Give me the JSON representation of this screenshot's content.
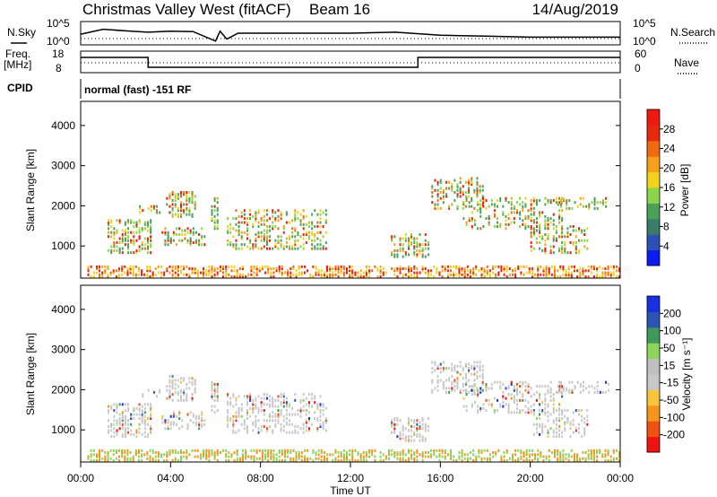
{
  "header": {
    "title": "Christmas Valley West (fitACF)",
    "beam": "Beam 16",
    "date": "14/Aug/2019"
  },
  "left_labels": {
    "nsky": "N.Sky",
    "freq_top": "Freq.",
    "freq_unit": "[MHz]",
    "cpid": "CPID"
  },
  "right_labels": {
    "nsearch": "N.Search",
    "nave": "Nave"
  },
  "cpid_text": "normal (fast) -151 RF",
  "colors": {
    "power_scale": [
      "#0a1cf0",
      "#2e4fb5",
      "#3a7c6a",
      "#4aa25a",
      "#8cd44a",
      "#f3d21c",
      "#f5a21a",
      "#f06a10",
      "#e8280c",
      "#ee1a10"
    ],
    "velocity_scale": [
      "#ee1510",
      "#f05010",
      "#f5951a",
      "#f8c43c",
      "#c8c8c8",
      "#bfbfbf",
      "#8ed45a",
      "#3e9a5a",
      "#2a55b5",
      "#1a2fe0"
    ]
  },
  "chart_data": [
    {
      "type": "line",
      "name": "noise-search",
      "left_ticks": [
        "10^5",
        "10^0"
      ],
      "right_ticks": [
        "10^5",
        "10^0"
      ],
      "left_label": "N.Sky",
      "right_label": "N.Search",
      "xlim": [
        0,
        24
      ],
      "x": [
        0,
        1,
        2,
        3,
        4,
        5,
        6,
        6.2,
        6.5,
        7,
        8,
        10,
        12,
        14,
        16,
        18,
        20,
        22,
        24
      ],
      "values": [
        0.45,
        0.7,
        0.62,
        0.55,
        0.6,
        0.58,
        0.1,
        0.6,
        0.2,
        0.5,
        0.5,
        0.5,
        0.5,
        0.55,
        0.4,
        0.35,
        0.3,
        0.3,
        0.3
      ]
    },
    {
      "type": "line",
      "name": "frequency-nave",
      "left_ticks": [
        "18",
        "8"
      ],
      "right_ticks": [
        "60",
        "0"
      ],
      "left_label": "Freq. [MHz]",
      "right_label": "Nave",
      "xlim": [
        0,
        24
      ],
      "freq_steps": [
        [
          0,
          3,
          "high"
        ],
        [
          3,
          15,
          "low"
        ],
        [
          15,
          24,
          "high"
        ]
      ]
    },
    {
      "type": "heatmap",
      "name": "power",
      "ylabel": "Slant Range [km]",
      "yticks": [
        "4000",
        "3000",
        "2000",
        "1000"
      ],
      "ytick_values": [
        4000,
        3000,
        2000,
        1000
      ],
      "ylim": [
        200,
        4600
      ],
      "xlim": [
        0,
        24
      ],
      "colorbar": {
        "label": "Power [dB]",
        "ticks": [
          "28",
          "24",
          "20",
          "16",
          "12",
          "8",
          "4"
        ]
      }
    },
    {
      "type": "heatmap",
      "name": "velocity",
      "ylabel": "Slant Range [km]",
      "xlabel": "Time UT",
      "yticks": [
        "4000",
        "3000",
        "2000",
        "1000"
      ],
      "ytick_values": [
        4000,
        3000,
        2000,
        1000
      ],
      "ylim": [
        200,
        4600
      ],
      "xlim": [
        0,
        24
      ],
      "xticks": [
        "00:00",
        "04:00",
        "08:00",
        "12:00",
        "16:00",
        "20:00",
        "00:00"
      ],
      "colorbar": {
        "label": "Velocity [m s⁻¹]",
        "ticks": [
          "200",
          "100",
          "50",
          "15",
          "-15",
          "-50",
          "-100",
          "-200"
        ]
      }
    }
  ]
}
